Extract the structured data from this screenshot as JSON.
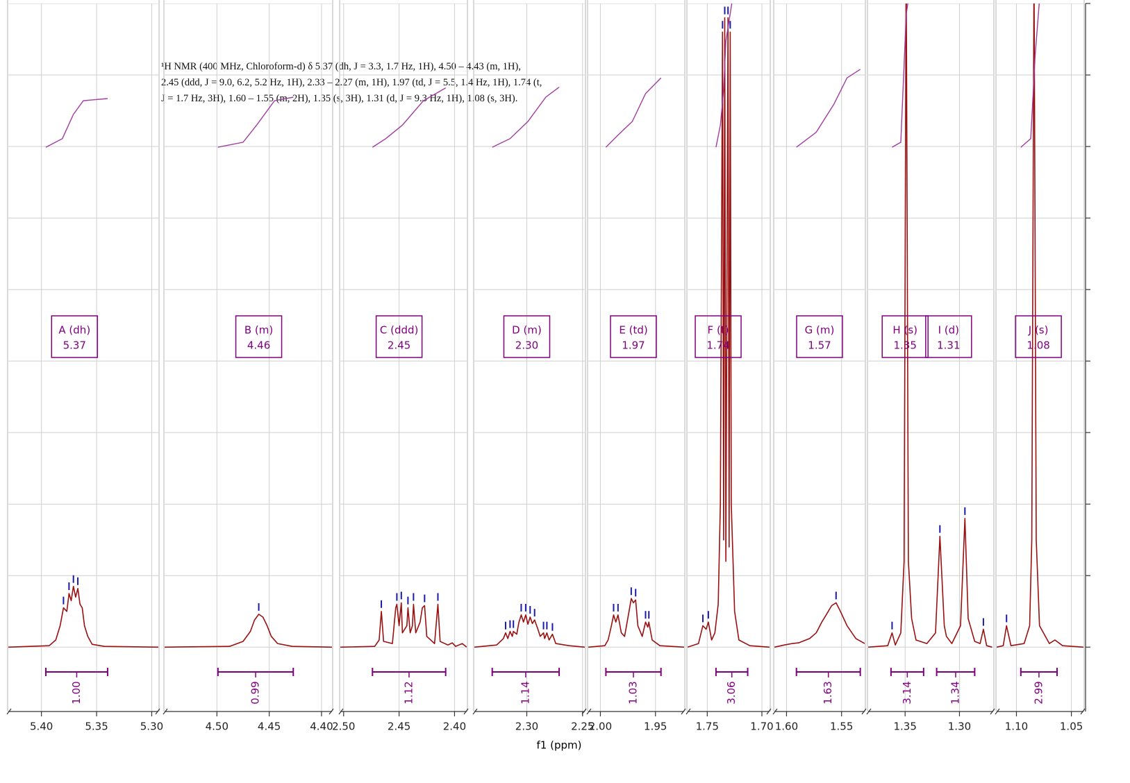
{
  "chart_data": {
    "type": "nmr",
    "title_lines": [
      "¹H NMR (400 MHz, Chloroform-d) δ 5.37 (dh, J = 3.3, 1.7 Hz, 1H), 4.50 – 4.43 (m, 1H),",
      "2.45 (ddd, J = 9.0, 6.2, 5.2 Hz, 1H), 2.33 – 2.27 (m, 1H), 1.97 (td, J = 5.5, 1.4 Hz, 1H), 1.74 (t,",
      "J = 1.7 Hz, 3H), 1.60 – 1.55 (m, 2H), 1.35 (s, 3H), 1.31 (d, J = 9.3 Hz, 1H), 1.08 (s, 3H)."
    ],
    "x_label": "f1 (ppm)",
    "ylim": [
      -0.9,
      9
    ],
    "yticks": [
      0,
      1,
      2,
      3,
      4,
      5,
      6,
      7,
      8,
      9
    ],
    "grid": true,
    "spectrum_color": "#9a1010",
    "integral_color": "#a03ca0",
    "peak_color": "#1a1aa8",
    "label_color": "#800080",
    "panels": [
      {
        "xlim": [
          5.43,
          5.294
        ],
        "xticks": [
          {
            "value": 5.4,
            "label": "5.40"
          },
          5.35,
          {
            "value": 5.3,
            "label": "5.30"
          }
        ],
        "x": [
          5.43,
          5.393,
          5.387,
          5.383,
          5.38,
          5.377,
          5.375,
          5.373,
          5.371,
          5.369,
          5.367,
          5.365,
          5.363,
          5.361,
          5.358,
          5.354,
          5.343,
          5.294
        ],
        "y": [
          0,
          0.02,
          0.1,
          0.3,
          0.55,
          0.5,
          0.75,
          0.65,
          0.85,
          0.7,
          0.82,
          0.6,
          0.55,
          0.3,
          0.15,
          0.04,
          0.01,
          0
        ],
        "integral_x": [
          5.396,
          5.381,
          5.371,
          5.362,
          5.34
        ],
        "integral_y": [
          6.99,
          7.11,
          7.45,
          7.64,
          7.67
        ],
        "integrations": [
          {
            "from": 5.396,
            "to": 5.34,
            "label": "1.00"
          }
        ],
        "multiplets": [
          {
            "label": "A (dh)",
            "shift": 5.37
          }
        ]
      },
      {
        "xlim": [
          4.55,
          4.39
        ],
        "xticks": [
          {
            "value": 4.5,
            "label": "4.50"
          },
          4.45,
          {
            "value": 4.4,
            "label": "4.40"
          }
        ],
        "x": [
          4.55,
          4.488,
          4.475,
          4.468,
          4.464,
          4.46,
          4.456,
          4.452,
          4.448,
          4.442,
          4.428,
          4.39
        ],
        "y": [
          0,
          0.01,
          0.08,
          0.22,
          0.38,
          0.46,
          0.42,
          0.3,
          0.15,
          0.05,
          0.01,
          0
        ],
        "integral_x": [
          4.499,
          4.475,
          4.462,
          4.445,
          4.427
        ],
        "integral_y": [
          6.99,
          7.06,
          7.3,
          7.64,
          7.69
        ],
        "integrations": [
          {
            "from": 4.499,
            "to": 4.427,
            "label": "0.99"
          }
        ],
        "multiplets": [
          {
            "label": "B (m)",
            "shift": 4.46
          }
        ]
      },
      {
        "xlim": [
          2.503,
          2.389
        ],
        "xticks": [
          {
            "value": 2.5,
            "label": "2.50"
          },
          2.45,
          {
            "value": 2.4,
            "label": "2.40"
          }
        ],
        "x": [
          2.503,
          2.472,
          2.468,
          2.466,
          2.464,
          2.456,
          2.453,
          2.452,
          2.45,
          2.448,
          2.447,
          2.443,
          2.442,
          2.44,
          2.438,
          2.437,
          2.435,
          2.431,
          2.429,
          2.427,
          2.425,
          2.418,
          2.415,
          2.413,
          2.406,
          2.402,
          2.399,
          2.393,
          2.389
        ],
        "y": [
          0,
          0.01,
          0.1,
          0.5,
          0.08,
          0.05,
          0.55,
          0.6,
          0.3,
          0.62,
          0.2,
          0.3,
          0.55,
          0.2,
          0.3,
          0.6,
          0.2,
          0.35,
          0.55,
          0.58,
          0.15,
          0.05,
          0.6,
          0.08,
          0.03,
          0.06,
          0.01,
          0.05,
          0
        ],
        "integral_x": [
          2.474,
          2.462,
          2.447,
          2.428,
          2.408
        ],
        "integral_y": [
          6.99,
          7.11,
          7.3,
          7.64,
          7.82
        ],
        "integrations": [
          {
            "from": 2.474,
            "to": 2.408,
            "label": "1.12"
          }
        ],
        "multiplets": [
          {
            "label": "C (ddd)",
            "shift": 2.45
          }
        ]
      },
      {
        "xlim": [
          2.347,
          2.248
        ],
        "xticks": [
          {
            "value": 2.3,
            "label": "2.30"
          },
          2.25
        ],
        "x": [
          2.347,
          2.327,
          2.321,
          2.319,
          2.317,
          2.315,
          2.313,
          2.312,
          2.309,
          2.307,
          2.305,
          2.303,
          2.301,
          2.299,
          2.297,
          2.295,
          2.293,
          2.29,
          2.288,
          2.285,
          2.284,
          2.282,
          2.28,
          2.277,
          2.274,
          2.262,
          2.248
        ],
        "y": [
          0,
          0.03,
          0.12,
          0.2,
          0.12,
          0.22,
          0.15,
          0.22,
          0.18,
          0.35,
          0.45,
          0.35,
          0.45,
          0.32,
          0.42,
          0.33,
          0.38,
          0.25,
          0.15,
          0.2,
          0.12,
          0.2,
          0.1,
          0.18,
          0.05,
          0.02,
          0
        ],
        "integral_x": [
          2.331,
          2.315,
          2.299,
          2.283,
          2.271
        ],
        "integral_y": [
          6.99,
          7.11,
          7.35,
          7.69,
          7.83
        ],
        "integrations": [
          {
            "from": 2.331,
            "to": 2.271,
            "label": "1.14"
          }
        ],
        "multiplets": [
          {
            "label": "D (m)",
            "shift": {
              "value": 2.3,
              "label": "2.30"
            }
          }
        ]
      },
      {
        "xlim": [
          2.011,
          1.924
        ],
        "xticks": [
          {
            "value": 2.0,
            "label": "2.00"
          },
          1.95
        ],
        "x": [
          2.011,
          1.996,
          1.993,
          1.99,
          1.988,
          1.986,
          1.984,
          1.981,
          1.978,
          1.974,
          1.972,
          1.97,
          1.968,
          1.966,
          1.962,
          1.959,
          1.957,
          1.956,
          1.953,
          1.946,
          1.924
        ],
        "y": [
          0,
          0.02,
          0.1,
          0.3,
          0.45,
          0.35,
          0.45,
          0.2,
          0.15,
          0.5,
          0.68,
          0.62,
          0.66,
          0.3,
          0.15,
          0.35,
          0.28,
          0.35,
          0.1,
          0.02,
          0
        ],
        "integral_x": [
          1.995,
          1.984,
          1.971,
          1.959,
          1.945
        ],
        "integral_y": [
          6.99,
          7.16,
          7.35,
          7.74,
          7.96
        ],
        "integrations": [
          {
            "from": 1.995,
            "to": 1.945,
            "label": "1.03"
          }
        ],
        "multiplets": [
          {
            "label": "E (td)",
            "shift": 1.97
          }
        ]
      },
      {
        "xlim": [
          1.768,
          1.693
        ],
        "xticks": [
          1.75,
          {
            "value": 1.7,
            "label": "1.70"
          }
        ],
        "x": [
          1.768,
          1.758,
          1.754,
          1.751,
          1.749,
          1.746,
          1.743,
          1.74,
          1.738,
          1.736,
          1.735,
          1.734,
          1.733,
          1.731,
          1.73,
          1.729,
          1.728,
          1.725,
          1.721,
          1.711,
          1.693
        ],
        "y": [
          0,
          0.05,
          0.3,
          0.25,
          0.35,
          0.1,
          0.2,
          0.6,
          2.0,
          8.6,
          1.5,
          8.8,
          1.2,
          8.8,
          1.4,
          8.6,
          2.0,
          0.5,
          0.1,
          0.02,
          0
        ],
        "integral_x": [
          1.742,
          1.738,
          1.735,
          1.733,
          1.727
        ],
        "integral_y": [
          6.99,
          7.3,
          7.79,
          8.47,
          9.05
        ],
        "integrations": [
          {
            "from": 1.742,
            "to": 1.713,
            "label": "3.06"
          }
        ],
        "multiplets": [
          {
            "label": "F (t)",
            "shift": 1.74
          }
        ]
      },
      {
        "xlim": [
          1.611,
          1.529
        ],
        "xticks": [
          {
            "value": 1.6,
            "label": "1.60"
          },
          1.55
        ],
        "x": [
          1.611,
          1.602,
          1.595,
          1.589,
          1.579,
          1.573,
          1.568,
          1.564,
          1.559,
          1.555,
          1.551,
          1.545,
          1.537,
          1.529
        ],
        "y": [
          0,
          0.03,
          0.05,
          0.06,
          0.12,
          0.2,
          0.35,
          0.45,
          0.58,
          0.62,
          0.5,
          0.3,
          0.12,
          0.05
        ],
        "integral_x": [
          1.591,
          1.573,
          1.557,
          1.545,
          1.533
        ],
        "integral_y": [
          6.99,
          7.2,
          7.59,
          7.96,
          8.08
        ],
        "integrations": [
          {
            "from": 1.591,
            "to": 1.533,
            "label": "1.63"
          }
        ],
        "multiplets": [
          {
            "label": "G (m)",
            "shift": 1.57
          }
        ]
      },
      {
        "xlim": [
          1.384,
          1.269
        ],
        "xticks": [
          1.35,
          {
            "value": 1.3,
            "label": "1.30"
          }
        ],
        "x": [
          1.384,
          1.366,
          1.362,
          1.359,
          1.354,
          1.351,
          1.349,
          1.347,
          1.344,
          1.34,
          1.33,
          1.322,
          1.318,
          1.314,
          1.312,
          1.307,
          1.299,
          1.295,
          1.292,
          1.286,
          1.281,
          1.278,
          1.275,
          1.27
        ],
        "y": [
          0,
          0.02,
          0.2,
          0.03,
          0.2,
          1.2,
          9.5,
          1.2,
          0.4,
          0.1,
          0.05,
          0.2,
          1.55,
          0.3,
          0.15,
          0.05,
          0.3,
          1.8,
          0.4,
          0.08,
          0.05,
          0.25,
          0.02,
          0
        ],
        "integral_x": [
          1.362,
          1.354,
          1.349,
          1.347,
          1.321,
          1.316,
          1.299,
          1.292,
          1.286
        ],
        "integral_y": [
          6.99,
          7.06,
          8.85,
          9.05,
          null,
          null,
          null,
          null,
          null
        ],
        "integrations": [
          {
            "from": 1.363,
            "to": 1.333,
            "label": "3.14"
          },
          {
            "from": 1.321,
            "to": 1.286,
            "label": "1.34"
          }
        ],
        "multiplets": [
          {
            "label": "H (s)",
            "shift": 1.35
          },
          {
            "label": "I (d)",
            "shift": 1.31
          }
        ]
      },
      {
        "xlim": [
          1.118,
          1.039
        ],
        "xticks": [
          {
            "value": 1.1,
            "label": "1.10"
          },
          1.05
        ],
        "x": [
          1.118,
          1.112,
          1.109,
          1.105,
          1.093,
          1.088,
          1.086,
          1.084,
          1.082,
          1.079,
          1.07,
          1.065,
          1.058,
          1.039
        ],
        "y": [
          0,
          0.02,
          0.3,
          0.02,
          0.05,
          0.3,
          1.5,
          9.5,
          1.5,
          0.3,
          0.05,
          0.1,
          0.02,
          0
        ],
        "integral_x": [
          1.096,
          1.087,
          1.083,
          1.079
        ],
        "integral_y": [
          6.99,
          7.11,
          8.27,
          9.05
        ],
        "integrations": [
          {
            "from": 1.096,
            "to": 1.063,
            "label": "2.99"
          }
        ],
        "multiplets": [
          {
            "label": "J (s)",
            "shift": 1.08
          }
        ]
      }
    ]
  }
}
